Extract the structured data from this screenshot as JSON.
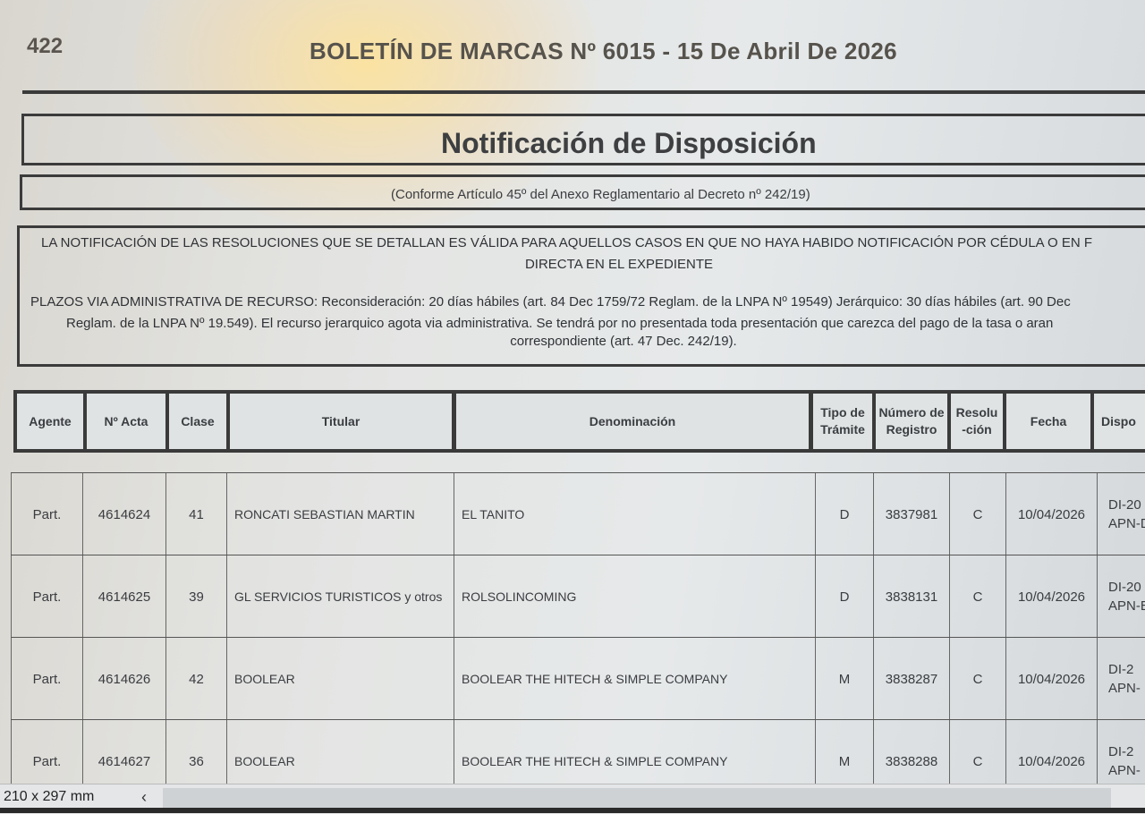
{
  "header": {
    "page_number": "422",
    "bulletin_title": "BOLETÍN DE MARCAS Nº 6015 - 15 De Abril De 2026"
  },
  "section_title": "Notificación de Disposición",
  "subtitle": "(Conforme Artículo 45º del Anexo Reglamentario al Decreto nº 242/19)",
  "notice": {
    "line1": "LA NOTIFICACIÓN DE LAS RESOLUCIONES QUE SE DETALLAN ES VÁLIDA PARA AQUELLOS CASOS EN QUE NO HAYA HABIDO NOTIFICACIÓN POR CÉDULA O EN F",
    "line2": "DIRECTA EN EL EXPEDIENTE",
    "line3": "PLAZOS VIA ADMINISTRATIVA DE RECURSO: Reconsideración: 20 días hábiles (art. 84 Dec 1759/72 Reglam. de la LNPA Nº 19549) Jerárquico: 30 días hábiles (art. 90 Dec",
    "line4": "Reglam. de la LNPA Nº 19.549). El recurso jerarquico agota via administrativa. Se tendrá por no presentada toda presentación que carezca del pago de la tasa o aran",
    "line5": "correspondiente (art. 47 Dec. 242/19)."
  },
  "table": {
    "columns": [
      "Agente",
      "Nº Acta",
      "Clase",
      "Titular",
      "Denominación",
      "Tipo de Trámite",
      "Número de Registro",
      "Resolu-ción",
      "Fecha",
      "Dispo"
    ],
    "rows": [
      {
        "agente": "Part.",
        "acta": "4614624",
        "clase": "41",
        "titular": "RONCATI SEBASTIAN MARTIN",
        "denominacion": "EL TANITO",
        "tipo": "D",
        "registro": "3837981",
        "resolucion": "C",
        "fecha": "10/04/2026",
        "dispo1": "DI-20",
        "dispo2": "APN-D"
      },
      {
        "agente": "Part.",
        "acta": "4614625",
        "clase": "39",
        "titular": "GL SERVICIOS TURISTICOS y otros",
        "denominacion": "ROLSOLINCOMING",
        "tipo": "D",
        "registro": "3838131",
        "resolucion": "C",
        "fecha": "10/04/2026",
        "dispo1": "DI-20",
        "dispo2": "APN-E"
      },
      {
        "agente": "Part.",
        "acta": "4614626",
        "clase": "42",
        "titular": "BOOLEAR",
        "denominacion": "BOOLEAR THE HITECH & SIMPLE COMPANY",
        "tipo": "M",
        "registro": "3838287",
        "resolucion": "C",
        "fecha": "10/04/2026",
        "dispo1": "DI-2",
        "dispo2": "APN-"
      },
      {
        "agente": "Part.",
        "acta": "4614627",
        "clase": "36",
        "titular": "BOOLEAR",
        "denominacion": "BOOLEAR THE HITECH & SIMPLE COMPANY",
        "tipo": "M",
        "registro": "3838288",
        "resolucion": "C",
        "fecha": "10/04/2026",
        "dispo1": "DI-2",
        "dispo2": "APN-"
      }
    ]
  },
  "statusbar": {
    "page_size": "210 x 297 mm",
    "scroll_left_icon": "chevron-left-icon"
  }
}
